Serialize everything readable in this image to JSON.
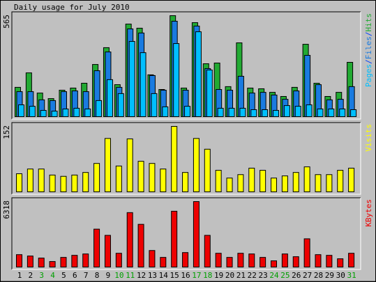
{
  "chart_data": [
    {
      "type": "bar",
      "title": "Daily usage for July 2010",
      "ylim": [
        0,
        565
      ],
      "yticks": [
        565
      ],
      "legend_separator": "/",
      "series": [
        {
          "name": "Hits",
          "color": "#22aa33",
          "values": [
            164,
            245,
            132,
            101,
            148,
            160,
            187,
            292,
            386,
            179,
            518,
            495,
            234,
            152,
            565,
            160,
            526,
            296,
            300,
            168,
            413,
            160,
            156,
            136,
            113,
            164,
            405,
            187,
            113,
            136,
            304
          ]
        },
        {
          "name": "Files",
          "color": "#1a7be0",
          "values": [
            140,
            140,
            94,
            90,
            140,
            144,
            140,
            257,
            362,
            164,
            491,
            468,
            230,
            148,
            534,
            148,
            507,
            269,
            152,
            148,
            226,
            132,
            136,
            121,
            97,
            144,
            343,
            179,
            94,
            97,
            168
          ]
        },
        {
          "name": "Pages",
          "color": "#00bfff",
          "values": [
            66,
            58,
            35,
            31,
            43,
            47,
            43,
            90,
            207,
            129,
            421,
            358,
            129,
            55,
            409,
            58,
            475,
            261,
            47,
            47,
            47,
            39,
            39,
            35,
            62,
            58,
            66,
            43,
            43,
            43,
            39
          ]
        }
      ]
    },
    {
      "type": "bar",
      "ylim": [
        0,
        152
      ],
      "yticks": [
        152
      ],
      "series": [
        {
          "name": "Visits",
          "color": "#ffff00",
          "values": [
            42,
            53,
            53,
            39,
            36,
            39,
            45,
            66,
            124,
            60,
            123,
            71,
            66,
            53,
            152,
            45,
            124,
            99,
            50,
            32,
            40,
            55,
            50,
            32,
            37,
            45,
            58,
            40,
            40,
            50,
            55
          ]
        }
      ]
    },
    {
      "type": "bar",
      "ylim": [
        0,
        6318
      ],
      "yticks": [
        6318
      ],
      "categories": [
        "1",
        "2",
        "3",
        "4",
        "5",
        "6",
        "7",
        "8",
        "9",
        "10",
        "11",
        "12",
        "13",
        "14",
        "15",
        "16",
        "17",
        "18",
        "19",
        "20",
        "21",
        "22",
        "23",
        "24",
        "25",
        "26",
        "27",
        "28",
        "29",
        "30",
        "31"
      ],
      "label_colors": [
        "#000000",
        "#000000",
        "#00a000",
        "#00a000",
        "#000000",
        "#000000",
        "#000000",
        "#000000",
        "#000000",
        "#00a000",
        "#00a000",
        "#000000",
        "#000000",
        "#000000",
        "#000000",
        "#000000",
        "#00a000",
        "#00a000",
        "#000000",
        "#000000",
        "#000000",
        "#000000",
        "#000000",
        "#00a000",
        "#00a000",
        "#000000",
        "#000000",
        "#000000",
        "#000000",
        "#000000",
        "#00a000"
      ],
      "series": [
        {
          "name": "KBytes",
          "color": "#ee0000",
          "values": [
            1197,
            1064,
            865,
            532,
            931,
            1131,
            1264,
            3658,
            3059,
            1330,
            5254,
            4123,
            1596,
            931,
            5387,
            1397,
            6318,
            3059,
            1330,
            931,
            1330,
            1264,
            931,
            599,
            1264,
            998,
            2727,
            1197,
            1131,
            798,
            1330
          ]
        }
      ]
    }
  ]
}
